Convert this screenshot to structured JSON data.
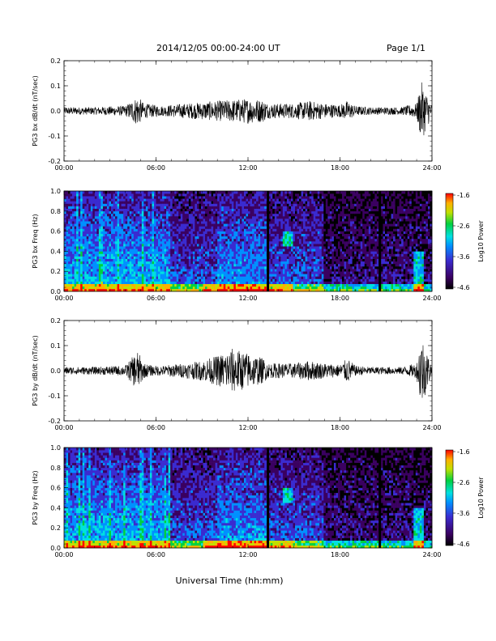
{
  "header": {
    "title": "2014/12/05  00:00-24:00 UT",
    "page": "Page 1/1"
  },
  "footer": {
    "xlabel": "Universal Time (hh:mm)"
  },
  "colors": {
    "waveform": "#000000",
    "colorbar": [
      "#000000",
      "#3a0060",
      "#3a2bd0",
      "#0090ff",
      "#00e0e0",
      "#00d040",
      "#c0e000",
      "#ffb000",
      "#ff0000"
    ]
  },
  "chart_data": [
    {
      "type": "line",
      "ylabel": "PG3 bx dB/dt (nT/sec)",
      "ylim": [
        -0.2,
        0.2
      ],
      "yticks": [
        "0.2",
        "0.1",
        "0.0",
        "-0.1",
        "-0.2"
      ],
      "xticks": [
        "00:00",
        "06:00",
        "12:00",
        "18:00",
        "24:00"
      ],
      "x_unit": "hours UT",
      "envelope": {
        "x": [
          0,
          1,
          2,
          3,
          4,
          4.8,
          5.2,
          5.8,
          6.5,
          7,
          8,
          9,
          10,
          11,
          12,
          13,
          13.3,
          14,
          15,
          16,
          17,
          18,
          18.5,
          19,
          20,
          21,
          22,
          23,
          23.3,
          23.6,
          24
        ],
        "amplitude": [
          0.015,
          0.015,
          0.015,
          0.018,
          0.02,
          0.06,
          0.03,
          0.025,
          0.02,
          0.025,
          0.03,
          0.035,
          0.04,
          0.045,
          0.05,
          0.045,
          0.03,
          0.03,
          0.03,
          0.04,
          0.03,
          0.025,
          0.04,
          0.02,
          0.015,
          0.015,
          0.015,
          0.03,
          0.12,
          0.08,
          0.02
        ]
      }
    },
    {
      "type": "heatmap",
      "ylabel": "PG3 bx Freq (Hz)",
      "ylim": [
        0.0,
        1.0
      ],
      "yticks": [
        "1.0",
        "0.8",
        "0.6",
        "0.4",
        "0.2",
        "0.0"
      ],
      "xticks": [
        "00:00",
        "06:00",
        "12:00",
        "18:00",
        "24:00"
      ],
      "colorbar_label": "Log10 Power",
      "colorbar_range": [
        -4.6,
        -1.6
      ],
      "colorbar_ticks": [
        "-1.6",
        "-2.6",
        "-3.6",
        "-4.6"
      ],
      "data_gaps_hours": [
        13.3,
        20.6
      ]
    },
    {
      "type": "line",
      "ylabel": "PG3 by dB/dt (nT/sec)",
      "ylim": [
        -0.2,
        0.2
      ],
      "yticks": [
        "0.2",
        "0.1",
        "0.0",
        "-0.1",
        "-0.2"
      ],
      "xticks": [
        "00:00",
        "06:00",
        "12:00",
        "18:00",
        "24:00"
      ],
      "x_unit": "hours UT",
      "envelope": {
        "x": [
          0,
          1,
          2,
          3,
          4,
          4.8,
          5.2,
          5.8,
          6.5,
          7,
          8,
          9,
          10,
          11,
          12,
          13,
          13.3,
          14,
          15,
          16,
          17,
          18,
          18.5,
          19,
          20,
          21,
          22,
          23,
          23.3,
          23.6,
          24
        ],
        "amplitude": [
          0.015,
          0.015,
          0.015,
          0.018,
          0.02,
          0.08,
          0.03,
          0.02,
          0.02,
          0.025,
          0.03,
          0.04,
          0.06,
          0.09,
          0.07,
          0.05,
          0.03,
          0.03,
          0.03,
          0.04,
          0.03,
          0.025,
          0.05,
          0.02,
          0.015,
          0.015,
          0.015,
          0.03,
          0.15,
          0.09,
          0.02
        ]
      }
    },
    {
      "type": "heatmap",
      "ylabel": "PG3 by Freq (Hz)",
      "ylim": [
        0.0,
        1.0
      ],
      "yticks": [
        "1.0",
        "0.8",
        "0.6",
        "0.4",
        "0.2",
        "0.0"
      ],
      "xticks": [
        "00:00",
        "06:00",
        "12:00",
        "18:00",
        "24:00"
      ],
      "colorbar_label": "Log10 Power",
      "colorbar_range": [
        -4.6,
        -1.6
      ],
      "colorbar_ticks": [
        "-1.6",
        "-2.6",
        "-3.6",
        "-4.6"
      ],
      "data_gaps_hours": [
        13.3,
        20.6
      ]
    }
  ]
}
